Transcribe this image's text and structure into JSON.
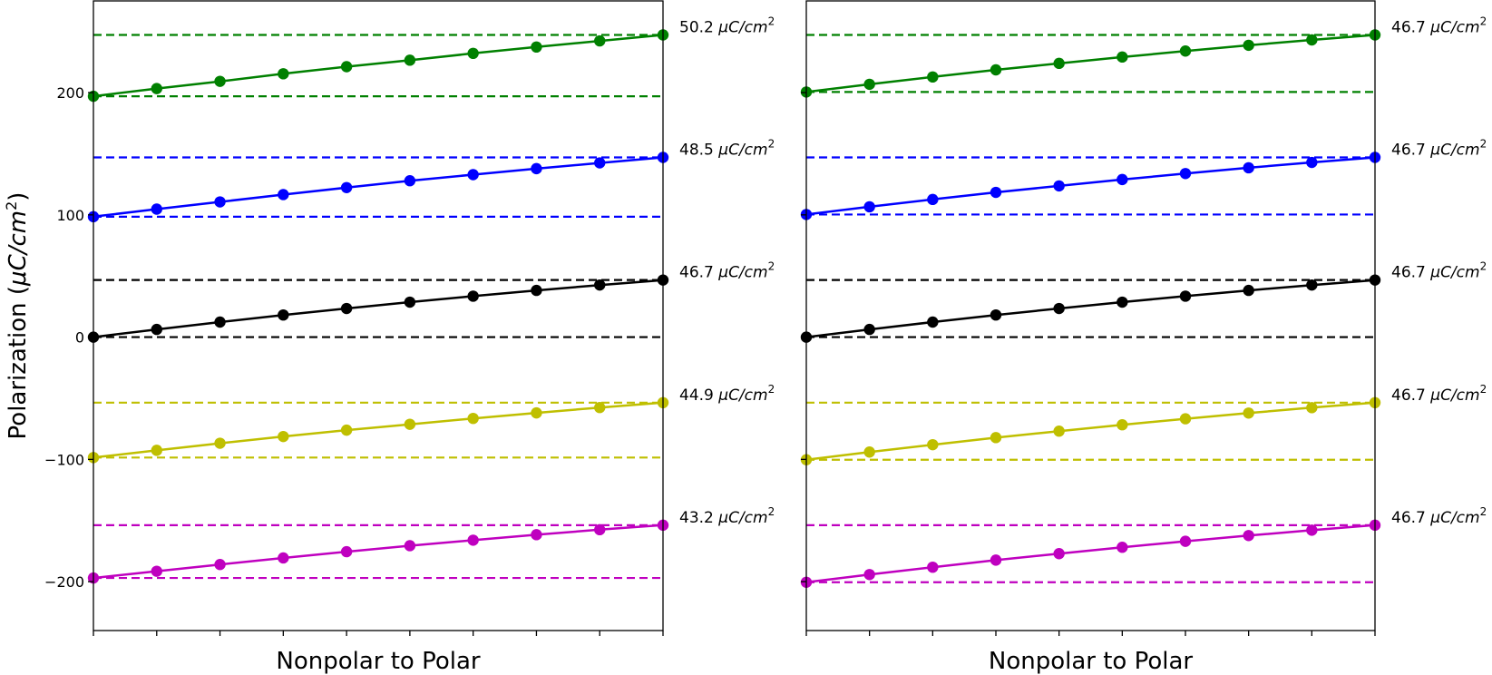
{
  "chart_data": [
    {
      "type": "line",
      "panel": "left",
      "xlabel": "Nonpolar to Polar",
      "ylabel": "Polarization (μC/cm²)",
      "ylabel_main": "Polarization (",
      "ylabel_unit": "μC/cm",
      "ylabel_sup": "2",
      "ylabel_close": ")",
      "ylim": [
        -240,
        275
      ],
      "yticks": [
        -200,
        -100,
        0,
        100,
        200
      ],
      "ytick_labels": [
        "−200",
        "−100",
        "0",
        "100",
        "200"
      ],
      "x": [
        0,
        1,
        2,
        3,
        4,
        5,
        6,
        7,
        8,
        9
      ],
      "series": [
        {
          "name": "green",
          "color": "#008000",
          "start": 197,
          "end": 247.2,
          "annotation_value": "50.2",
          "annotation_unit": "μC/cm",
          "annotation_sup": "2",
          "values": [
            197,
            203.3,
            209.2,
            215.4,
            221.2,
            226.5,
            232.1,
            237.3,
            242.3,
            247.2
          ]
        },
        {
          "name": "blue",
          "color": "#0000ff",
          "start": 98.5,
          "end": 147,
          "annotation_value": "48.5",
          "annotation_unit": "μC/cm",
          "annotation_sup": "2",
          "values": [
            98.5,
            104.7,
            110.6,
            116.6,
            122.3,
            127.9,
            132.9,
            137.8,
            142.5,
            147
          ]
        },
        {
          "name": "black",
          "color": "#000000",
          "start": 0,
          "end": 46.7,
          "annotation_value": "46.7",
          "annotation_unit": "μC/cm",
          "annotation_sup": "2",
          "values": [
            0,
            6.3,
            12.3,
            18.1,
            23.4,
            28.6,
            33.5,
            38.2,
            42.6,
            46.7
          ]
        },
        {
          "name": "yellow",
          "color": "#bfbf00",
          "start": -98.5,
          "end": -53.6,
          "annotation_value": "44.9",
          "annotation_unit": "μC/cm",
          "annotation_sup": "2",
          "values": [
            -98.5,
            -92.6,
            -86.8,
            -81.3,
            -76.1,
            -71.3,
            -66.5,
            -62.0,
            -57.6,
            -53.6
          ]
        },
        {
          "name": "magenta",
          "color": "#bf00bf",
          "start": -197,
          "end": -153.8,
          "annotation_value": "43.2",
          "annotation_unit": "μC/cm",
          "annotation_sup": "2",
          "values": [
            -197,
            -191.5,
            -186.0,
            -180.6,
            -175.5,
            -170.6,
            -166.1,
            -161.6,
            -157.5,
            -153.8
          ]
        }
      ]
    },
    {
      "type": "line",
      "panel": "right",
      "xlabel": "Nonpolar to Polar",
      "ylim": [
        -240,
        275
      ],
      "yticks": [
        -200,
        -100,
        0,
        100,
        200
      ],
      "x": [
        0,
        1,
        2,
        3,
        4,
        5,
        6,
        7,
        8,
        9
      ],
      "series": [
        {
          "name": "green",
          "color": "#008000",
          "start": 200.5,
          "end": 247.2,
          "annotation_value": "46.7",
          "annotation_unit": "μC/cm",
          "annotation_sup": "2",
          "values": [
            200.5,
            206.8,
            212.8,
            218.6,
            223.9,
            229.1,
            234.0,
            238.7,
            243.1,
            247.2
          ]
        },
        {
          "name": "blue",
          "color": "#0000ff",
          "start": 100.3,
          "end": 147,
          "annotation_value": "46.7",
          "annotation_unit": "μC/cm",
          "annotation_sup": "2",
          "values": [
            100.3,
            106.6,
            112.6,
            118.4,
            123.7,
            128.9,
            133.8,
            138.5,
            142.9,
            147
          ]
        },
        {
          "name": "black",
          "color": "#000000",
          "start": 0,
          "end": 46.7,
          "annotation_value": "46.7",
          "annotation_unit": "μC/cm",
          "annotation_sup": "2",
          "values": [
            0,
            6.3,
            12.3,
            18.1,
            23.4,
            28.6,
            33.5,
            38.2,
            42.6,
            46.7
          ]
        },
        {
          "name": "yellow",
          "color": "#bfbf00",
          "start": -100.3,
          "end": -53.6,
          "annotation_value": "46.7",
          "annotation_unit": "μC/cm",
          "annotation_sup": "2",
          "values": [
            -100.3,
            -94.0,
            -88.0,
            -82.2,
            -76.9,
            -71.7,
            -66.8,
            -62.1,
            -57.7,
            -53.6
          ]
        },
        {
          "name": "magenta",
          "color": "#bf00bf",
          "start": -200.5,
          "end": -153.8,
          "annotation_value": "46.7",
          "annotation_unit": "μC/cm",
          "annotation_sup": "2",
          "values": [
            -200.5,
            -194.2,
            -188.2,
            -182.4,
            -177.1,
            -171.9,
            -167.0,
            -162.3,
            -157.9,
            -153.8
          ]
        }
      ]
    }
  ]
}
